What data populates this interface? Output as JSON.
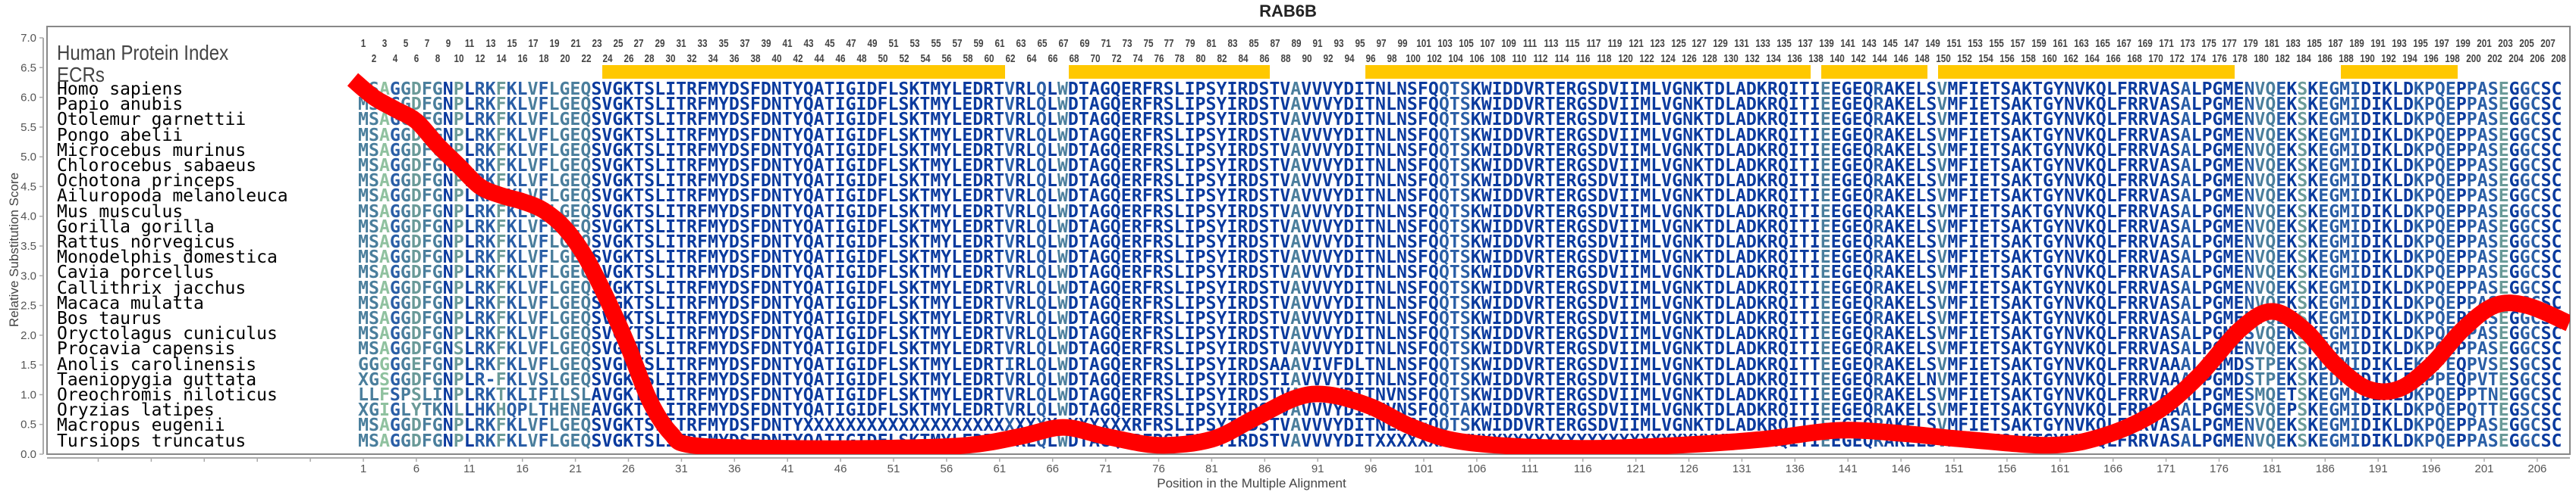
{
  "title": "RAB6B",
  "header": {
    "protein_index_label": "Human Protein Index",
    "ecr_label": "ECRs"
  },
  "ecrs": [
    [
      24,
      61
    ],
    [
      68,
      86
    ],
    [
      96,
      137
    ],
    [
      139,
      148
    ],
    [
      150,
      177
    ],
    [
      188,
      198
    ]
  ],
  "ecr_color": "#ffc800",
  "alignment": {
    "length": 208,
    "shade_colors": [
      "#0a3a9e",
      "#2a5ea6",
      "#4a7e9c",
      "#6a9a98",
      "#8fc19f"
    ],
    "column_shades": "2241232203011311212222000000000000000000000000000000000000000100102000000000000000000000200000000000001110000000000000000000000000000000002000010000020000000000000000000000100000122103011110000011110111301100 0",
    "rows": [
      {
        "species": "Homo sapiens",
        "sequence": "MSAGGDFGNPLRKFKLVFLGEQSVGKTSLITRFMYDSFDNTYQATIGIDFLSKTMYLEDRTVRLQLWDTAGQERFRSLIPSYIRDSTVAVVVYDITNLNSFQQTSKWIDDVRTERGSDVIIMLVGNKTDLADKRQITIEEGEQRAKELSVMFIETSAKTGYNVKQLFRRVASALPGMENVQEKSKEGMIDIKLDKPQEPPASEGGCSC"
      },
      {
        "species": "Papio anubis",
        "sequence": "MSAGGDFGNPLRKFKLVFLGEQSVGKTSLITRFMYDSFDNTYQATIGIDFLSKTMYLEDRTVRLQLWDTAGQERFRSLIPSYIRDSTVAVVVYDITNLNSFQQTSKWIDDVRTERGSDVIIMLVGNKTDLADKRQITIEEGEQRAKELSVMFIETSAKTGYNVKQLFRRVASALPGMENVQEKSKEGMIDIKLDKPQEPPASEGGCSC"
      },
      {
        "species": "Otolemur garnettii",
        "sequence": "MSAGGDFGNPLRKFKLVFLGEQSVGKTSLITRFMYDSFDNTYQATIGIDFLSKTMYLEDRTVRLQLWDTAGQERFRSLIPSYIRDSTVAVVVYDITNLNSFQQTSKWIDDVRTERGSDVIIMLVGNKTDLADKRQITIEEGEQRAKELSVMFIETSAKTGYNVKQLFRRVASALPGMENVQEKSKEGMIDIKLDKPQEPPASEGGCSC"
      },
      {
        "species": "Pongo abelii",
        "sequence": "MSAGGDFGNPLRKFKLVFLGEQSVGKTSLITRFMYDSFDNTYQATIGIDFLSKTMYLEDRTVRLQLWDTAGQERFRSLIPSYIRDSTVAVVVYDITNLNSFQQTSKWIDDVRTERGSDVIIMLVGNKTDLADKRQITIEEGEQRAKELSVMFIETSAKTGYNVKQLFRRVASALPGMENVQEKSKEGMIDIKLDKPQEPPASEGGCSC"
      },
      {
        "species": "Microcebus murinus",
        "sequence": "MSAGGDFGNPLRKFKLVFLGEQSVGKTSLITRFMYDSFDNTYQATIGIDFLSKTMYLEDRTVRLQLWDTAGQERFRSLIPSYIRDSTVAVVVYDITNLNSFQQTSKWIDDVRTERGSDVIIMLVGNKTDLADKRQITIEEGEQRAKELSVMFIETSAKTGYNVKQLFRRVASALPGMENVQEKSKEGMIDIKLDKPQEPPASEGGCSC"
      },
      {
        "species": "Chlorocebus sabaeus",
        "sequence": "MSAGGDFGNPLRKFKLVFLGEQSVGKTSLITRFMYDSFDNTYQATIGIDFLSKTMYLEDRTVRLQLWDTAGQERFRSLIPSYIRDSTVAVVVYDITNLNSFQQTSKWIDDVRTERGSDVIIMLVGNKTDLADKRQITIEEGEQRAKELSVMFIETSAKTGYNVKQLFRRVASALPGMENVQEKSKEGMIDIKLDKPQEPPASEGGCSC"
      },
      {
        "species": "Ochotona princeps",
        "sequence": "MSAGGDFGNPLRKFKLVFLGEQSVGKTSLITRFMYDSFDNTYQATIGIDFLSKTMYLEDRTVRLQLWDTAGQERFRSLIPSYIRDSTVAVVVYDITNLNSFQQTSKWIDDVRTERGSDVIIMLVGNKTDLADKRQITIEEGEQRAKELSVMFIETSAKTGYNVKQLFRRVASALPGMENVQEKSKEGMIDIKLDKPQEPPASEGGCSC"
      },
      {
        "species": "Ailuropoda melanoleuca",
        "sequence": "MSAGGDFGNPLRKFKLVFLGEQSVGKTSLITRFMYDSFDNTYQATIGIDFLSKTMYLEDRTVRLQLWDTAGQERFRSLIPSYIRDSTVAVVVYDITNLNSFQQTSKWIDDVRTERGSDVIIMLVGNKTDLADKRQITIEEGEQRAKELSVMFIETSAKTGYNVKQLFRRVASALPGMENVQEKSKEGMIDIKLDKPQEPPASEGGCSC"
      },
      {
        "species": "Mus musculus",
        "sequence": "MSAGGDFGNPLRKFKLVFLGEQSVGKTSLITRFMYDSFDNTYQATIGIDFLSKTMYLEDRTVRLQLWDTAGQERFRSLIPSYIRDSTVAVVVYDITNLNSFQQTSKWIDDVRTERGSDVIIMLVGNKTDLADKRQITIEEGEQRAKELSVMFIETSAKTGYNVKQLFRRVASALPGMENVQEKSKEGMIDIKLDKPQEPPASEGGCSC"
      },
      {
        "species": "Gorilla gorilla",
        "sequence": "MSAGGDFGNPLRKFKLVFLGEQSVGKTSLITRFMYDSFDNTYQATIGIDFLSKTMYLEDRTVRLQLWDTAGQERFRSLIPSYIRDSTVAVVVYDITNLNSFQQTSKWIDDVRTERGSDVIIMLVGNKTDLADKRQITIEEGEQRAKELSVMFIETSAKTGYNVKQLFRRVASALPGMENVQEKSKEGMIDIKLDKPQEPPASEGGCSC"
      },
      {
        "species": "Rattus norvegicus",
        "sequence": "MSAGGDFGNPLRKFKLVFLGEQSVGKTSLITRFMYDSFDNTYQATIGIDFLSKTMYLEDRTVRLQLWDTAGQERFRSLIPSYIRDSTVAVVVYDITNLNSFQQTSKWIDDVRTERGSDVIIMLVGNKTDLADKRQITIEEGEQRAKELSVMFIETSAKTGYNVKQLFRRVASALPGMENVQEKSKEGMIDIKLDKPQEPPASEGGCSC"
      },
      {
        "species": "Monodelphis domestica",
        "sequence": "MSAGGDFGNPLRKFKLVFLGEQSVGKTSLITRFMYDSFDNTYQATIGIDFLSKTMYLEDRTVRLQLWDTAGQERFRSLIPSYIRDSTVAVVVYDITNLNSFQQTSKWIDDVRTERGSDVIIMLVGNKTDLADKRQITIEEGEQRAKELSVMFIETSAKTGYNVKQLFRRVASALPGMENVQEKSKEGMIDIKLDKPQEPPASEGGCSC"
      },
      {
        "species": "Cavia porcellus",
        "sequence": "MSAGGDFGNPLRKFKLVFLGEQSVGKTSLITRFMYDSFDNTYQATIGIDFLSKTMYLEDRTVRLQLWDTAGQERFRSLIPSYIRDSTVAVVVYDITNLNSFQQTSKWIDDVRTERGSDVIIMLVGNKTDLADKRQITIEEGEQRAKELSVMFIETSAKTGYNVKQLFRRVASALPGMENVQEKSKEGMIDIKLDKPQEPPASEGGCSC"
      },
      {
        "species": "Callithrix jacchus",
        "sequence": "MSAGGDFGNPLRKFKLVFLGEQSVGKTSLITRFMYDSFDNTYQATIGIDFLSKTMYLEDRTVRLQLWDTAGQERFRSLIPSYIRDSTVAVVVYDITNLNSFQQTSKWIDDVRTERGSDVIIMLVGNKTDLADKRQITIEEGEQRAKELSVMFIETSAKTGYNVKQLFRRVASALPGMENVQEKSKEGMIDIKLDKPQEPPASEGGCSC"
      },
      {
        "species": "Macaca mulatta",
        "sequence": "MSAGGDFGNPLRKFKLVFLGEQSVGKTSLITRFMYDSFDNTYQATIGIDFLSKTMYLEDRTVRLQLWDTAGQERFRSLIPSYIRDSTVAVVVYDITNLNSFQQTSKWIDDVRTERGSDVIIMLVGNKTDLADKRQITIEEGEQRAKELSVMFIETSAKTGYNVKQLFRRVASALPGMENVQEKSKEGMIDIKLDKPQEPPASEGGCSC"
      },
      {
        "species": "Bos taurus",
        "sequence": "MSAGGDFGNPLRKFKLVFLGEQSVGKTSLITRFMYDSFDNTYQATIGIDFLSKTMYLEDRTVRLQLWDTAGQERFRSLIPSYIRDSTVAVVVYDITNLNSFQQTSKWIDDVRTERGSDVIIMLVGNKTDLADKRQITIEEGEQRAKELSVMFIETSAKTGYNVKQLFRRVASALPGMENVQEKSKEGMIDIKLDKPQEPPASEGGCSC"
      },
      {
        "species": "Oryctolagus cuniculus",
        "sequence": "MSAGGDFGNPLRKFKLVFLGEQSVGKTSLITRFMYDSFDNTYQATIGIDFLSKTMYLEDRTVRLQLWDTAGQERFRSLIPSYIRDSTVAVVVYDITNLNSFQQTSKWIDDVRTERGSDVIIMLVGNKTDLADKRQITIEEGEQRAKELSVMFIETSAKTGYNVKQLFRRVASALPGMESVQEKSKEGMIDIKLDKPQEPPASEGGCSC"
      },
      {
        "species": "Procavia capensis",
        "sequence": "MSAGGDFGNSLRKFKLVFLGEQSVGKTSLITRFMYDSFDNTYQATIGIDFLSKTMYLEDRTVRLQLWDTAGQERFRSLIPSYIRDSTVAVVVYDITNLNSFQQTSKWIDDVRTERGSDVIIMLVGNKTDLADKRQITIEEGEQRAKELSVMFIETSAKTGYNVKQLFRRVASALPGMENVQEKSKEGMIDIKLDKPQEPPASEGGCSC"
      },
      {
        "species": "Anolis carolinensis",
        "sequence": "GGGGGEFGNPLRKFKLVFLGEQSVGKTSLITRFMYDSFDNTYQATIGIDFLSKTMYLEDRTIRLQLWDTAGQERFRSLIPSYIRDSAAAVIVFDLTNLNSFQQTSKWIDDVRTERGSDVIIMLVGNKTDLADKRQITTEEGEQRAKELSVMFIETSAKTGYNVKQLFRRVAAALPGMDSTPEKSKDDMIDIKLEKPPEQPVSESGCSC"
      },
      {
        "species": "Taeniopygia guttata",
        "sequence": "XGSGGDFGNPLR-FKLVSLGEQSVGKTSLITRFMYDSFDNTYQATIGIDFLSKTMYLEDRTVRLQLWDTAGQERFRSLIPSYIRDSTIAVVVYDITNLNSFQQTSKWIDDVRTERGSDVIIMLVGNKTDLADKRQITTEEGEQRAKELNVMFIETSAKTGYNVKQLFRRVAAALPGMDSTPEKSKEDMIDIKLEKPPEQPVTESGCSC"
      },
      {
        "species": "Oreochromis niloticus",
        "sequence": "LLFSPSLINPLRKTKLIFILSLAVGKTSLITRFMYDSFDNTYQATIGIDFLSKTMYLEDRTVRLQLWDTAGQERFRSLIPSYIRDSTVAVVVYDITNVNSFQQTSKWIDDVRTERGSDVIIMLVGNKTDLADKRQITIEEGEQRAKELSVMFIETSAKTGYNVKQLFRRVAAALPGMESMQETSKEGMIDIKLDKPQEPPTNEGGCSC"
      },
      {
        "species": "Oryzias latipes",
        "sequence": "XGIGLYTKNLLHKHQPLTHENEAVGKTSLITRFMYDSFDNTYQATIGIDFLSKTMYLEDRTVRLQLWDTAGQERFRSLIPSYIRDSTVAVVVYDITNVNSFQQTAKWIDDVRTERGSDVIIMLVGNKTDLADKRQITIEEGEQRAKELSVMFIETSAKTGYNVKQLFRRVAAALPGMESVQEPSKEGMIDIKLDKPQEPQTTEGSCSC"
      },
      {
        "species": "Macropus eugenii",
        "sequence": "MSAGGDFGNPLRKFKLVFLGEQSVGKTSLITRFMYDSFDNTYXXXXXXXXXXXXXXXXXXXXXXXX-XXXXXXRFRSLIPSYIRDSTVAVVVYDITNLNSFQQTSKWIDDVRTERGSDVIIMLVGNKTDLADKRQITIEEGEQRAKELSVMFIETSAKTGYNVKQLFRRVASALPGMENVQEKSKEGMIDIKLDKPQEPPASEGGCSC"
      },
      {
        "species": "Tursiops truncatus",
        "sequence": "MSAGGDFGNPLRKFKLVFLGEQSVGKTSLITRFMYDSFDNTYQATIGIDFLSKTMYLEDRTVRLQLWDTAGQERFRSLIPSYIRDSTVAVVVYDITXXXXXXXXXXXXXXXXXXXXXXXXXXXXXXXXXXXXXXQITIEEGEQRAKELSVMFIETSAKTGYNVKQLFRRVASALPGMENVQEKSKEGMIDIKLDKPQEPPASEGGCSC"
      }
    ]
  },
  "chart_data": {
    "type": "line",
    "title": "RAB6B",
    "xlabel": "Position in the Multiple Alignment",
    "ylabel": "Relative Substitution Score",
    "ylim": [
      0,
      7
    ],
    "xlim": [
      1,
      208
    ],
    "grid": false,
    "y_ticks": [
      "0.0",
      "0.5",
      "1.0",
      "1.5",
      "2.0",
      "2.5",
      "3.0",
      "3.5",
      "4.0",
      "4.5",
      "5.0",
      "5.5",
      "6.0",
      "6.5",
      "7.0"
    ],
    "x_ticks": [
      "1",
      "6",
      "11",
      "16",
      "21",
      "26",
      "31",
      "36",
      "41",
      "46",
      "51",
      "56",
      "61",
      "66",
      "71",
      "76",
      "81",
      "86",
      "91",
      "96",
      "101",
      "106",
      "111",
      "116",
      "121",
      "126",
      "131",
      "136",
      "141",
      "146",
      "151",
      "156",
      "161",
      "166",
      "171",
      "176",
      "181",
      "186",
      "191",
      "196",
      "201",
      "206"
    ],
    "line_color": "#ff0000",
    "series": [
      {
        "points": [
          [
            0,
            6.3
          ],
          [
            2,
            6.0
          ],
          [
            4,
            5.8
          ],
          [
            6,
            5.6
          ],
          [
            8,
            5.2
          ],
          [
            10,
            4.85
          ],
          [
            12,
            4.5
          ],
          [
            14,
            4.35
          ],
          [
            16,
            4.25
          ],
          [
            18,
            4.1
          ],
          [
            20,
            3.8
          ],
          [
            22,
            3.3
          ],
          [
            24,
            2.6
          ],
          [
            26,
            1.8
          ],
          [
            28,
            0.9
          ],
          [
            30,
            0.35
          ],
          [
            32,
            0.15
          ],
          [
            40,
            0.1
          ],
          [
            50,
            0.1
          ],
          [
            58,
            0.15
          ],
          [
            63,
            0.3
          ],
          [
            67,
            0.45
          ],
          [
            71,
            0.3
          ],
          [
            76,
            0.15
          ],
          [
            81,
            0.25
          ],
          [
            85,
            0.6
          ],
          [
            89,
            0.95
          ],
          [
            92,
            1.0
          ],
          [
            96,
            0.8
          ],
          [
            100,
            0.45
          ],
          [
            105,
            0.2
          ],
          [
            115,
            0.1
          ],
          [
            125,
            0.15
          ],
          [
            133,
            0.25
          ],
          [
            140,
            0.4
          ],
          [
            146,
            0.35
          ],
          [
            152,
            0.25
          ],
          [
            160,
            0.15
          ],
          [
            165,
            0.3
          ],
          [
            170,
            0.7
          ],
          [
            174,
            1.3
          ],
          [
            178,
            2.1
          ],
          [
            181,
            2.4
          ],
          [
            184,
            2.1
          ],
          [
            187,
            1.5
          ],
          [
            190,
            1.1
          ],
          [
            193,
            1.1
          ],
          [
            196,
            1.5
          ],
          [
            199,
            2.1
          ],
          [
            202,
            2.5
          ],
          [
            205,
            2.5
          ],
          [
            209,
            2.2
          ]
        ]
      }
    ]
  }
}
